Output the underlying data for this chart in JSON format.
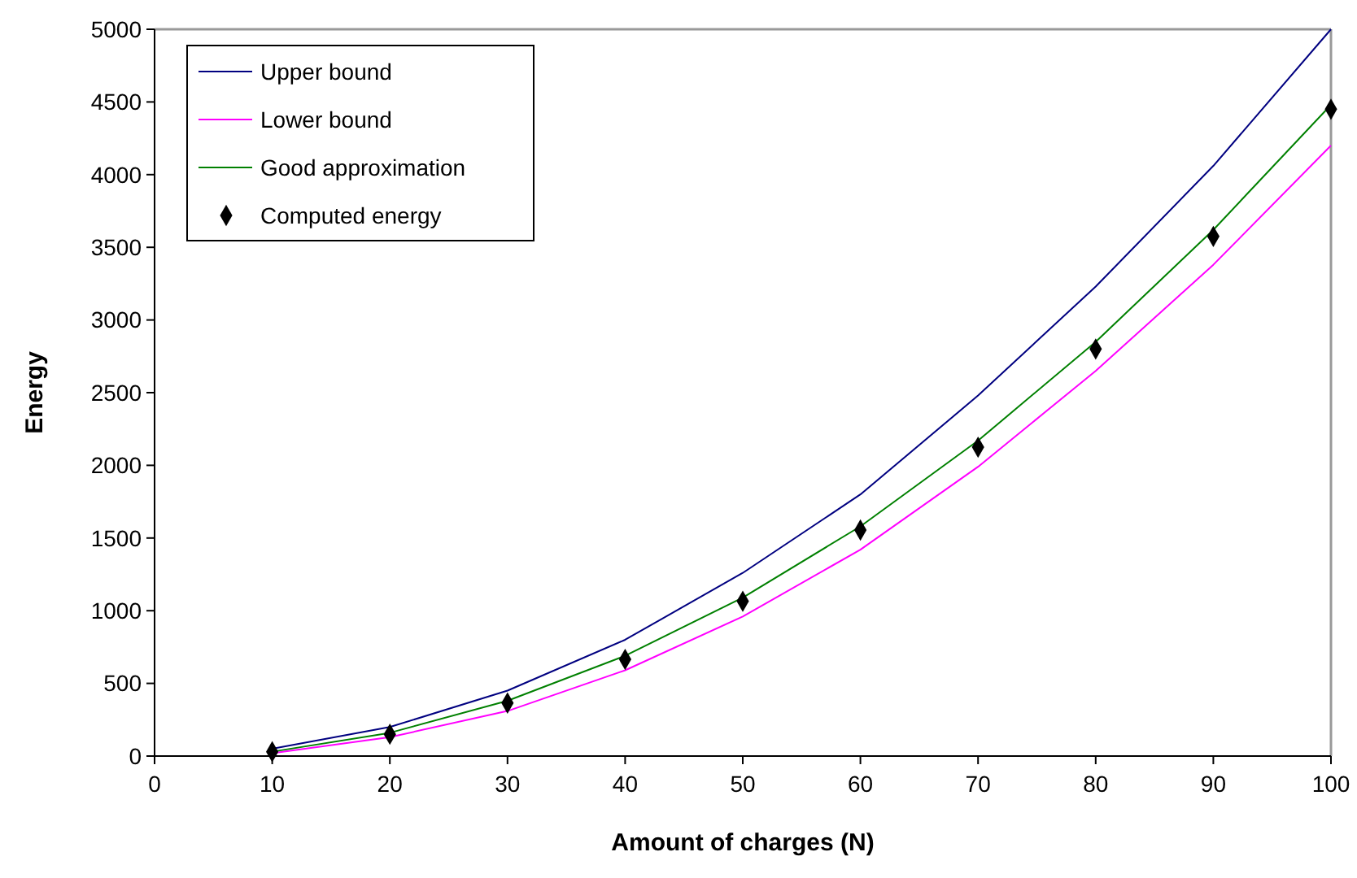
{
  "chart_data": {
    "type": "line",
    "xlabel": "Amount of charges (N)",
    "ylabel": "Energy",
    "x": [
      10,
      20,
      30,
      40,
      50,
      60,
      70,
      80,
      90,
      100
    ],
    "series": [
      {
        "name": "Upper bound",
        "color": "#000080",
        "values": [
          50,
          200,
          450,
          800,
          1260,
          1800,
          2480,
          3230,
          4060,
          5000
        ]
      },
      {
        "name": "Lower bound",
        "color": "#ff00ff",
        "values": [
          20,
          130,
          310,
          590,
          960,
          1420,
          1990,
          2650,
          3380,
          4200
        ]
      },
      {
        "name": "Good approximation",
        "color": "#008000",
        "values": [
          30,
          160,
          380,
          690,
          1090,
          1580,
          2170,
          2850,
          3620,
          4480
        ]
      },
      {
        "name": "Computed energy",
        "type": "scatter",
        "color": "#000000",
        "marker": "diamond",
        "values": [
          30,
          150,
          365,
          665,
          1065,
          1555,
          2125,
          2800,
          3575,
          4450
        ]
      }
    ],
    "xlim": [
      0,
      100
    ],
    "xticks": [
      0,
      10,
      20,
      30,
      40,
      50,
      60,
      70,
      80,
      90,
      100
    ],
    "ylim": [
      0,
      5000
    ],
    "yticks": [
      0,
      500,
      1000,
      1500,
      2000,
      2500,
      3000,
      3500,
      4000,
      4500,
      5000
    ],
    "grid": false,
    "legend": "top left",
    "marker": "none",
    "line_style": "solid"
  }
}
